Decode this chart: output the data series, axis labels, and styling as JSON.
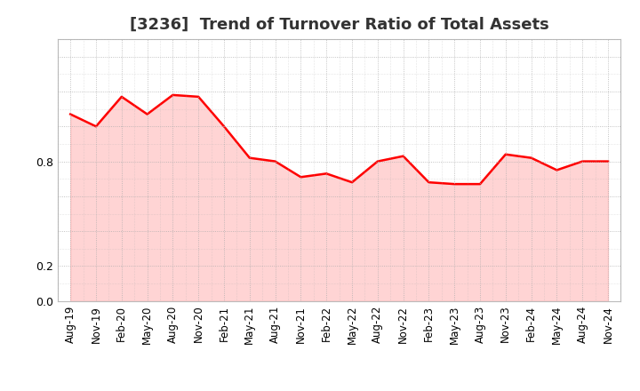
{
  "title": "[3236]  Trend of Turnover Ratio of Total Assets",
  "x_labels": [
    "Aug-19",
    "Nov-19",
    "Feb-20",
    "May-20",
    "Aug-20",
    "Nov-20",
    "Feb-21",
    "May-21",
    "Aug-21",
    "Nov-21",
    "Feb-22",
    "May-22",
    "Aug-22",
    "Nov-22",
    "Feb-23",
    "May-23",
    "Aug-23",
    "Nov-23",
    "Feb-24",
    "May-24",
    "Aug-24",
    "Nov-24"
  ],
  "y_values": [
    1.07,
    1.0,
    1.17,
    1.07,
    1.18,
    1.17,
    1.0,
    0.82,
    0.8,
    0.71,
    0.73,
    0.68,
    0.8,
    0.83,
    0.68,
    0.67,
    0.67,
    0.84,
    0.82,
    0.75,
    0.8,
    0.8
  ],
  "line_color": "#FF0000",
  "fill_color": "#FFAAAA",
  "line_width": 1.8,
  "ylim": [
    0.0,
    1.5
  ],
  "yticks": [
    0.0,
    0.2,
    0.4,
    0.6,
    0.8,
    1.0,
    1.2,
    1.4
  ],
  "grid_color": "#aaaaaa",
  "background_color": "#ffffff",
  "plot_bg_color": "#f5f5f5",
  "title_fontsize": 13,
  "tick_fontsize": 8.5,
  "title_color": "#333333"
}
